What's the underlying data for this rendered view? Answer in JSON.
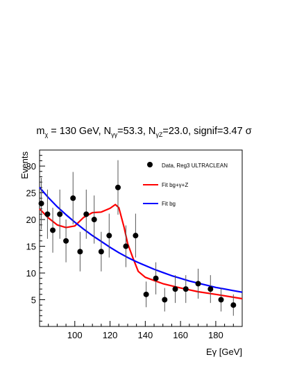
{
  "title_parts": {
    "m_sym": "m",
    "m_sub": "χ",
    "m_val": " = 130 GeV, N",
    "ngg_sub": "γγ",
    "ngg_val": "=53.3,  N",
    "ngz_sub": "γZ",
    "ngz_val": "=23.0, signif=3.47 σ"
  },
  "colors": {
    "fit_total": "#ff0000",
    "fit_bg": "#0000ff",
    "data": "#000000",
    "error_bar": "#555555"
  },
  "chart_data": {
    "type": "scatter",
    "title": "mχ = 130 GeV, Nγγ=53.3,  NγZ=23.0, signif=3.47 σ",
    "xlabel": "Eγ [GeV]",
    "ylabel": "Events",
    "xlim": [
      80,
      195
    ],
    "ylim": [
      0,
      33
    ],
    "x_ticks": [
      100,
      120,
      140,
      160,
      180
    ],
    "y_ticks": [
      5,
      10,
      15,
      20,
      25,
      30
    ],
    "grid": false,
    "legend_position": "top-right",
    "series": [
      {
        "name": "Data, Reg3 ULTRACLEAN",
        "kind": "points",
        "x": [
          81,
          84.5,
          87.5,
          91.5,
          95,
          99,
          103,
          106.5,
          111,
          115,
          119.5,
          124.5,
          129,
          134.5,
          140.5,
          146,
          151,
          157,
          163,
          170,
          177,
          183,
          190
        ],
        "y": [
          23,
          21,
          18,
          21,
          16,
          24,
          14,
          21,
          20,
          14,
          17,
          26,
          15,
          17,
          6,
          9,
          5,
          7,
          7,
          8,
          7,
          5,
          4
        ],
        "yerr_low": [
          4.8,
          4.6,
          4.2,
          4.6,
          4.0,
          4.9,
          3.7,
          4.6,
          4.5,
          3.7,
          4.1,
          5.1,
          3.9,
          4.1,
          2.4,
          3.0,
          2.2,
          2.6,
          2.6,
          2.8,
          2.6,
          2.2,
          2.0
        ],
        "yerr_high": [
          4.8,
          4.6,
          4.2,
          4.6,
          4.0,
          4.9,
          3.7,
          4.6,
          4.5,
          3.7,
          4.1,
          5.1,
          3.9,
          4.1,
          2.4,
          3.0,
          2.2,
          2.6,
          2.6,
          2.8,
          2.6,
          2.2,
          2.0
        ]
      },
      {
        "name": "Fit bg+γ+Z",
        "kind": "line",
        "x": [
          80,
          85,
          90,
          95,
          100,
          105,
          110,
          115,
          120,
          123,
          125,
          128,
          130,
          133,
          136,
          140,
          145,
          150,
          160,
          170,
          180,
          195
        ],
        "y": [
          22.0,
          20.3,
          19.0,
          18.5,
          18.8,
          20.4,
          21.3,
          21.4,
          22.1,
          22.8,
          22.2,
          18.5,
          15.5,
          12.8,
          10.3,
          9.2,
          8.6,
          8.0,
          7.2,
          6.5,
          6.0,
          5.2
        ]
      },
      {
        "name": "Fit bg",
        "kind": "line",
        "x": [
          80,
          85,
          90,
          95,
          100,
          105,
          110,
          115,
          120,
          125,
          130,
          135,
          140,
          145,
          150,
          155,
          160,
          165,
          170,
          175,
          180,
          185,
          190,
          195
        ],
        "y": [
          26.0,
          24.1,
          22.4,
          20.9,
          19.5,
          18.2,
          17.0,
          15.9,
          14.8,
          13.8,
          12.9,
          12.1,
          11.4,
          10.7,
          10.1,
          9.5,
          9.0,
          8.5,
          8.1,
          7.7,
          7.3,
          7.0,
          6.7,
          6.4
        ]
      }
    ]
  }
}
